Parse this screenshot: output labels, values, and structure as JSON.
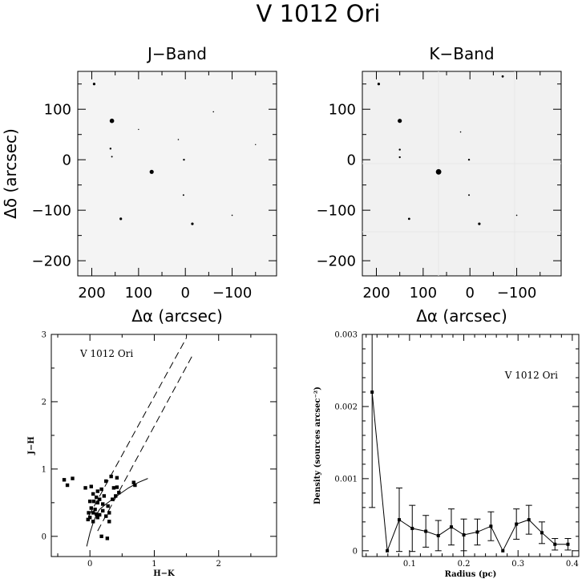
{
  "figure": {
    "title": "V 1012 Ori"
  },
  "chart_data": [
    {
      "type": "scatter",
      "title": "J−Band",
      "xlabel": "Δα (arcsec)",
      "ylabel": "Δδ (arcsec)",
      "xlim": [
        230,
        -195
      ],
      "ylim": [
        -230,
        175
      ],
      "xticks": [
        200,
        100,
        0,
        -100
      ],
      "yticks": [
        100,
        0,
        -100,
        -200
      ],
      "xtick_labels": [
        "200",
        "100",
        "0",
        "−100"
      ],
      "ytick_labels": [
        "100",
        "0",
        "−100",
        "−200"
      ],
      "points": [
        {
          "x": 195,
          "y": 150,
          "m": 1.6
        },
        {
          "x": 157,
          "y": 77,
          "m": 2.8
        },
        {
          "x": 160,
          "y": 22,
          "m": 1.2
        },
        {
          "x": 157,
          "y": 6,
          "m": 1.0
        },
        {
          "x": 72,
          "y": -24,
          "m": 2.6
        },
        {
          "x": 3,
          "y": 0,
          "m": 1.2
        },
        {
          "x": 4,
          "y": -70,
          "m": 1.0
        },
        {
          "x": 138,
          "y": -117,
          "m": 1.6
        },
        {
          "x": -15,
          "y": -127,
          "m": 1.6
        },
        {
          "x": 15,
          "y": 40,
          "m": 0.8
        },
        {
          "x": -60,
          "y": 95,
          "m": 0.8
        },
        {
          "x": -100,
          "y": -110,
          "m": 0.8
        },
        {
          "x": -150,
          "y": 30,
          "m": 0.7
        },
        {
          "x": 100,
          "y": 60,
          "m": 0.7
        }
      ]
    },
    {
      "type": "scatter",
      "title": "K−Band",
      "xlabel": "Δα (arcsec)",
      "ylabel": "",
      "xlim": [
        230,
        -195
      ],
      "ylim": [
        -230,
        175
      ],
      "xticks": [
        200,
        100,
        0,
        -100
      ],
      "yticks": [
        100,
        0,
        -100,
        -200
      ],
      "xtick_labels": [
        "200",
        "100",
        "0",
        "−100"
      ],
      "ytick_labels": [
        "100",
        "0",
        "−100",
        "−200"
      ],
      "points": [
        {
          "x": 195,
          "y": 150,
          "m": 1.6
        },
        {
          "x": 150,
          "y": 77,
          "m": 2.6
        },
        {
          "x": 150,
          "y": 20,
          "m": 1.2
        },
        {
          "x": 150,
          "y": 5,
          "m": 1.2
        },
        {
          "x": 67,
          "y": -24,
          "m": 3.4
        },
        {
          "x": 2,
          "y": 0,
          "m": 1.2
        },
        {
          "x": 2,
          "y": -70,
          "m": 1.0
        },
        {
          "x": 130,
          "y": -117,
          "m": 1.4
        },
        {
          "x": -20,
          "y": -127,
          "m": 1.6
        },
        {
          "x": -70,
          "y": 165,
          "m": 1.4
        },
        {
          "x": -100,
          "y": -110,
          "m": 0.8
        },
        {
          "x": 20,
          "y": 55,
          "m": 0.8
        }
      ]
    },
    {
      "type": "scatter",
      "title": "",
      "annotation": "V 1012 Ori",
      "xlabel": "H−K",
      "ylabel": "J−H",
      "xlim": [
        -0.6,
        2.9
      ],
      "ylim": [
        -0.3,
        3.0
      ],
      "xticks": [
        0,
        1,
        2
      ],
      "yticks": [
        0,
        1,
        2,
        3
      ],
      "xtick_labels": [
        "0",
        "1",
        "2"
      ],
      "ytick_labels": [
        "0",
        "1",
        "2",
        "3"
      ],
      "points": [
        [
          -0.4,
          0.84
        ],
        [
          -0.35,
          0.76
        ],
        [
          -0.27,
          0.86
        ],
        [
          -0.07,
          0.72
        ],
        [
          0.02,
          0.74
        ],
        [
          0.25,
          0.82
        ],
        [
          0.33,
          0.89
        ],
        [
          0.37,
          0.72
        ],
        [
          0.42,
          0.87
        ],
        [
          0.42,
          0.73
        ],
        [
          0.68,
          0.8
        ],
        [
          0.7,
          0.76
        ],
        [
          0.12,
          0.67
        ],
        [
          0.18,
          0.7
        ],
        [
          0.22,
          0.6
        ],
        [
          0.05,
          0.63
        ],
        [
          0.1,
          0.58
        ],
        [
          0.15,
          0.55
        ],
        [
          0.0,
          0.52
        ],
        [
          0.06,
          0.52
        ],
        [
          0.12,
          0.5
        ],
        [
          0.2,
          0.48
        ],
        [
          0.28,
          0.45
        ],
        [
          0.02,
          0.42
        ],
        [
          0.08,
          0.4
        ],
        [
          -0.02,
          0.35
        ],
        [
          0.05,
          0.35
        ],
        [
          0.1,
          0.33
        ],
        [
          0.15,
          0.32
        ],
        [
          0.2,
          0.38
        ],
        [
          0.25,
          0.3
        ],
        [
          0.3,
          0.35
        ],
        [
          0.0,
          0.28
        ],
        [
          -0.03,
          0.25
        ],
        [
          0.05,
          0.22
        ],
        [
          0.12,
          0.28
        ],
        [
          0.35,
          0.55
        ],
        [
          0.4,
          0.6
        ],
        [
          0.45,
          0.65
        ],
        [
          0.3,
          0.22
        ],
        [
          0.18,
          0.0
        ],
        [
          0.27,
          -0.03
        ]
      ],
      "locus": [
        [
          -0.05,
          -0.15
        ],
        [
          0.0,
          0.05
        ],
        [
          0.05,
          0.2
        ],
        [
          0.1,
          0.32
        ],
        [
          0.15,
          0.4
        ],
        [
          0.25,
          0.48
        ],
        [
          0.45,
          0.62
        ],
        [
          0.6,
          0.72
        ],
        [
          0.75,
          0.8
        ],
        [
          0.9,
          0.86
        ]
      ],
      "reddening_bands": [
        [
          [
            -0.02,
            0.3
          ],
          [
            1.5,
            2.95
          ]
        ],
        [
          [
            0.12,
            0.08
          ],
          [
            1.6,
            2.7
          ]
        ]
      ]
    },
    {
      "type": "line",
      "title": "",
      "annotation": "V 1012 Ori",
      "xlabel": "Radius (pc)",
      "ylabel": "Density (sources arcsec⁻²)",
      "xlim": [
        0.013,
        0.412
      ],
      "ylim": [
        -8e-05,
        0.003
      ],
      "xticks": [
        0.1,
        0.2,
        0.3,
        0.4
      ],
      "yticks": [
        0,
        0.001,
        0.002,
        0.003
      ],
      "xtick_labels": [
        "0.1",
        "0.2",
        "0.3",
        "0.4"
      ],
      "ytick_labels": [
        "0",
        "0.001",
        "0.002",
        "0.003"
      ],
      "x": [
        0.031,
        0.059,
        0.081,
        0.105,
        0.13,
        0.153,
        0.177,
        0.2,
        0.225,
        0.25,
        0.272,
        0.297,
        0.32,
        0.344,
        0.368,
        0.392
      ],
      "y": [
        0.0022,
        0.0,
        0.00043,
        0.00031,
        0.00027,
        0.00021,
        0.00033,
        0.00022,
        0.00026,
        0.00034,
        0.0,
        0.00037,
        0.00043,
        0.00025,
        9e-05,
        9e-05
      ],
      "err": [
        0.0016,
        0.0,
        0.00044,
        0.00032,
        0.00022,
        0.00021,
        0.00025,
        0.00022,
        0.00018,
        0.0002,
        0.0,
        0.00021,
        0.0002,
        0.00015,
        8e-05,
        8e-05
      ]
    }
  ]
}
